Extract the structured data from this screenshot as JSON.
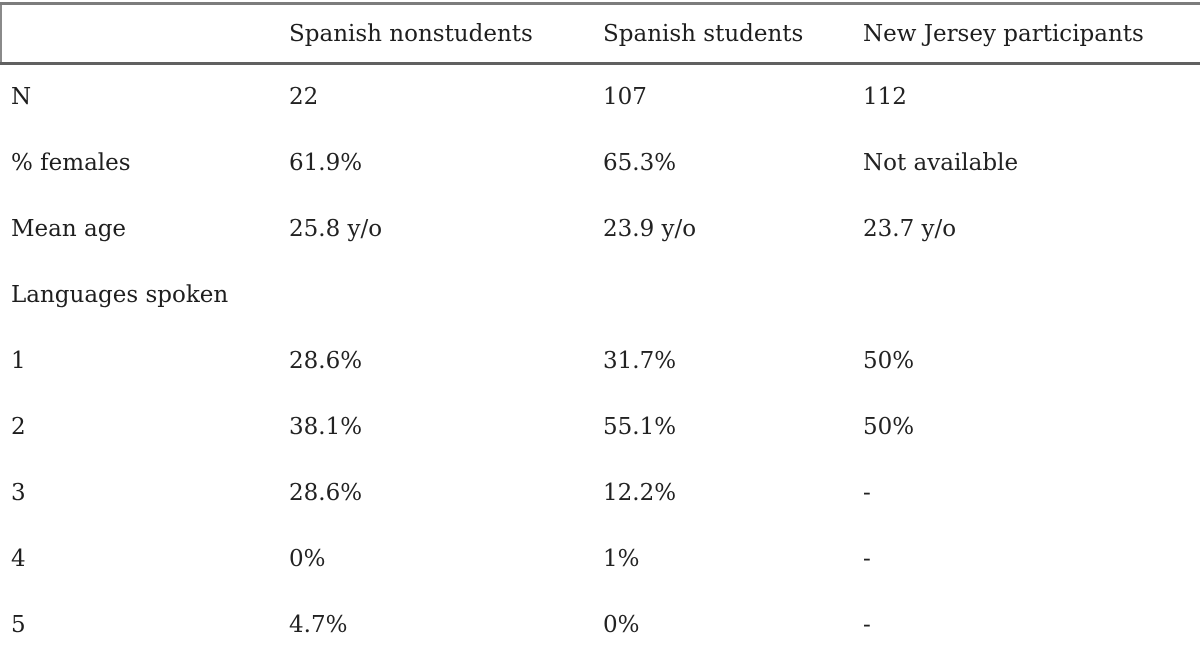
{
  "table": {
    "columns": [
      "",
      "Spanish nonstudents",
      "Spanish students",
      "New Jersey participants"
    ],
    "rows": [
      {
        "label": "N",
        "values": [
          "22",
          "107",
          "112"
        ]
      },
      {
        "label": "% females",
        "values": [
          "61.9%",
          "65.3%",
          "Not available"
        ]
      },
      {
        "label": "Mean age",
        "values": [
          "25.8 y/o",
          "23.9 y/o",
          "23.7 y/o"
        ]
      },
      {
        "label": "Languages spoken",
        "values": [
          "",
          "",
          ""
        ]
      },
      {
        "label": "1",
        "values": [
          "28.6%",
          "31.7%",
          "50%"
        ]
      },
      {
        "label": "2",
        "values": [
          "38.1%",
          "55.1%",
          "50%"
        ]
      },
      {
        "label": "3",
        "values": [
          "28.6%",
          "12.2%",
          "-"
        ]
      },
      {
        "label": "4",
        "values": [
          "0%",
          "1%",
          "-"
        ]
      },
      {
        "label": "5",
        "values": [
          "4.7%",
          "0%",
          "-"
        ]
      }
    ]
  },
  "colors": {
    "text": "#1e1e1e",
    "rule": "#6b6b6b",
    "background": "#ffffff"
  }
}
